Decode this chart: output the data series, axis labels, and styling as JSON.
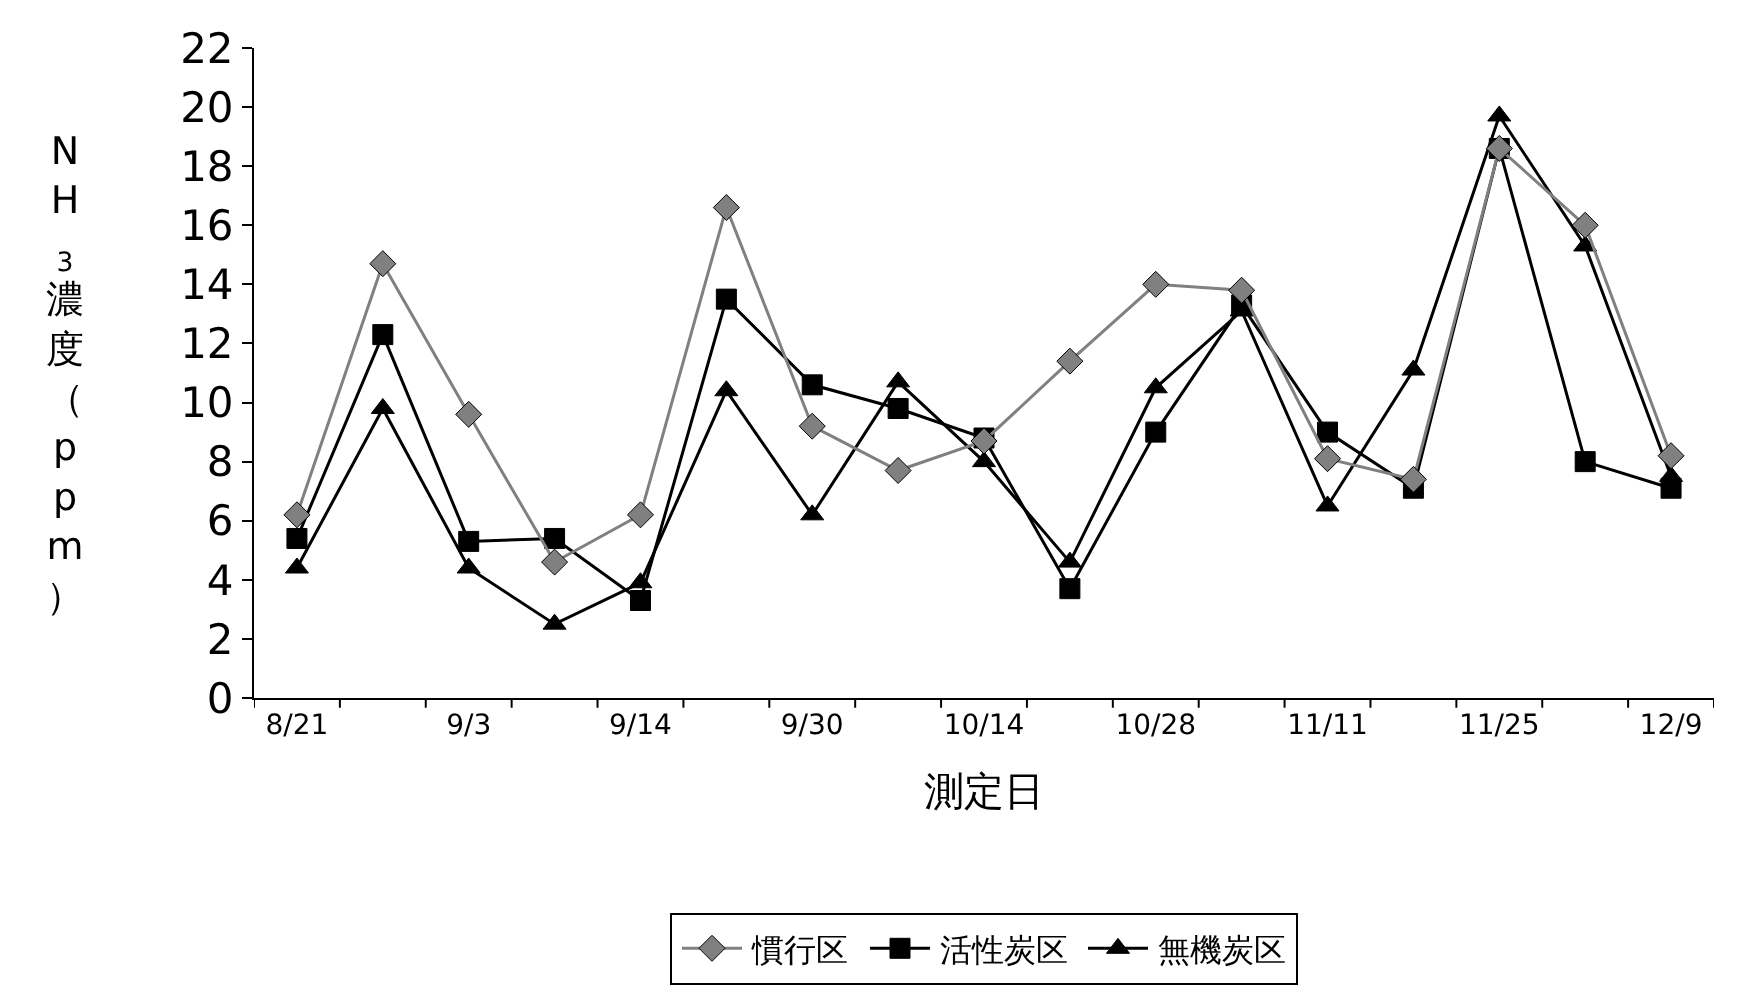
{
  "chart_data": {
    "type": "line",
    "xlabel": "測定日",
    "ylabel": "NH$_{3}$濃度（ppm）",
    "categories": [
      "8/21",
      null,
      "9/3",
      null,
      "9/14",
      null,
      "9/30",
      null,
      "10/14",
      null,
      "10/28",
      null,
      "11/11",
      null,
      "11/25",
      null,
      "12/9"
    ],
    "series": [
      {
        "name": "慣行区",
        "color": "#808080",
        "marker": "diamond",
        "values": [
          6.2,
          14.7,
          9.6,
          4.6,
          6.2,
          16.6,
          9.2,
          7.7,
          8.7,
          11.4,
          14.0,
          13.8,
          8.1,
          7.4,
          18.6,
          16.0,
          8.2
        ]
      },
      {
        "name": "活性炭区",
        "color": "#000000",
        "marker": "square",
        "values": [
          5.4,
          12.3,
          5.3,
          5.4,
          3.3,
          13.5,
          10.6,
          9.8,
          8.8,
          3.7,
          9.0,
          13.3,
          9.0,
          7.1,
          18.6,
          8.0,
          7.1
        ]
      },
      {
        "name": "無機炭区",
        "color": "#000000",
        "marker": "triangle",
        "values": [
          4.4,
          9.8,
          4.4,
          2.5,
          3.9,
          10.4,
          6.2,
          10.7,
          8.0,
          4.6,
          10.5,
          13.1,
          6.5,
          11.1,
          19.7,
          15.3,
          7.5
        ]
      }
    ],
    "ylim": [
      0,
      22
    ],
    "yticks": [
      0,
      2,
      4,
      6,
      8,
      10,
      12,
      14,
      16,
      18,
      20,
      22
    ],
    "legend": "bottom",
    "line_style": "solid"
  }
}
